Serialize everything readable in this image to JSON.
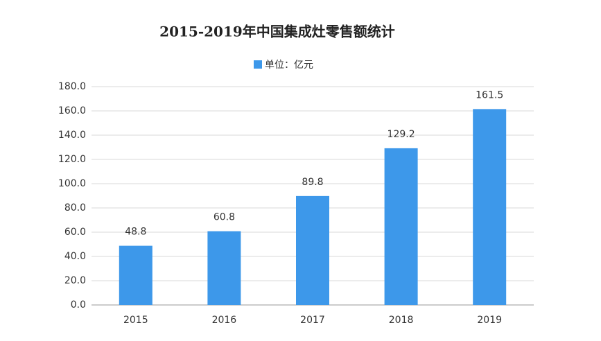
{
  "chart_data": {
    "type": "bar",
    "title": "2015-2019年中国集成灶零售额统计",
    "categories": [
      "2015",
      "2016",
      "2017",
      "2018",
      "2019"
    ],
    "series": [
      {
        "name": "单位：亿元",
        "color": "#3d98ea",
        "values": [
          48.8,
          60.8,
          89.8,
          129.2,
          161.5
        ]
      }
    ],
    "ylim": [
      0,
      180
    ],
    "yticks": [
      {
        "value": 0,
        "label": "0.0"
      },
      {
        "value": 20,
        "label": "20.0"
      },
      {
        "value": 40,
        "label": "40.0"
      },
      {
        "value": 60,
        "label": "60.0"
      },
      {
        "value": 80,
        "label": "80.0"
      },
      {
        "value": 100,
        "label": "100.0"
      },
      {
        "value": 120,
        "label": "120.0"
      },
      {
        "value": 140,
        "label": "140.0"
      },
      {
        "value": 160,
        "label": "160.0"
      },
      {
        "value": 180,
        "label": "180.0"
      }
    ],
    "grid": true
  }
}
